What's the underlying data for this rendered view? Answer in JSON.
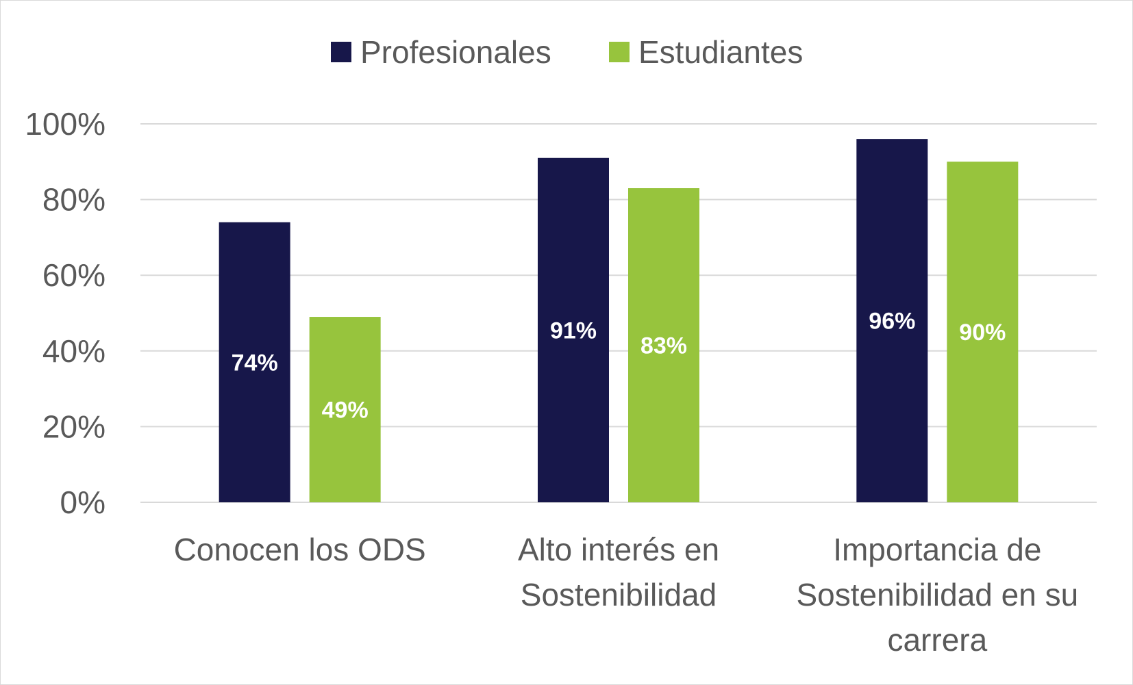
{
  "chart_data": {
    "type": "bar",
    "categories": [
      "Conocen los ODS",
      "Alto interés en Sostenibilidad",
      "Importancia de Sostenibilidad en su carrera"
    ],
    "category_lines": [
      [
        "Conocen los ODS"
      ],
      [
        "Alto interés en",
        "Sostenibilidad"
      ],
      [
        "Importancia de",
        "Sostenibilidad en su",
        "carrera"
      ]
    ],
    "series": [
      {
        "name": "Profesionales",
        "values": [
          0.74,
          0.91,
          0.96
        ],
        "labels": [
          "74%",
          "91%",
          "96%"
        ],
        "color": "#17174a"
      },
      {
        "name": "Estudiantes",
        "values": [
          0.49,
          0.83,
          0.9
        ],
        "labels": [
          "49%",
          "83%",
          "90%"
        ],
        "color": "#97c43d"
      }
    ],
    "y_ticks": [
      {
        "value": 0,
        "label": "0%"
      },
      {
        "value": 0.2,
        "label": "20%"
      },
      {
        "value": 0.4,
        "label": "40%"
      },
      {
        "value": 0.6,
        "label": "60%"
      },
      {
        "value": 0.8,
        "label": "80%"
      },
      {
        "value": 1.0,
        "label": "100%"
      }
    ],
    "ylim": [
      0,
      1
    ],
    "grid": true,
    "legend_position": "top-center",
    "gridline_color": "#d9d9d9",
    "text_color": "#595959"
  }
}
